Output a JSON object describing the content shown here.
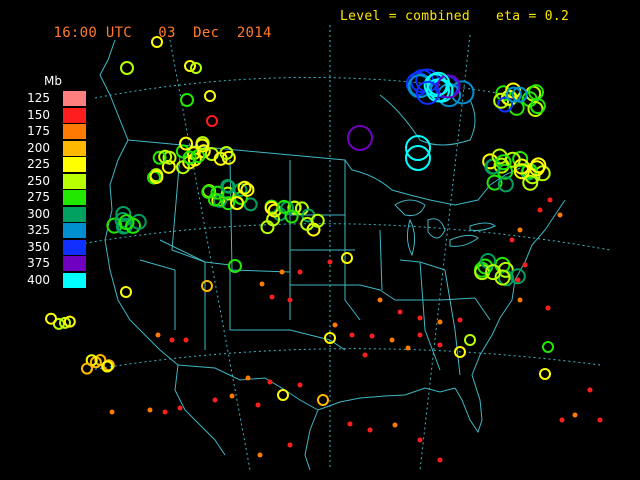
{
  "header": {
    "time": "16:00 UTC",
    "day": "03",
    "month": "Dec",
    "year": "2014",
    "level": "Level = combined",
    "eta": "eta = 0.2"
  },
  "legend": {
    "unit": "Mb",
    "levels": [
      {
        "label": "125",
        "color": "#ff7f7f"
      },
      {
        "label": "150",
        "color": "#ff1e1e"
      },
      {
        "label": "175",
        "color": "#ff7a00"
      },
      {
        "label": "200",
        "color": "#ffb800"
      },
      {
        "label": "225",
        "color": "#ffff00"
      },
      {
        "label": "250",
        "color": "#b8ff00"
      },
      {
        "label": "275",
        "color": "#22e800"
      },
      {
        "label": "300",
        "color": "#00a060"
      },
      {
        "label": "325",
        "color": "#0090d0"
      },
      {
        "label": "350",
        "color": "#1030ff"
      },
      {
        "label": "375",
        "color": "#7000c0"
      },
      {
        "label": "400",
        "color": "#00ffff"
      }
    ]
  }
}
